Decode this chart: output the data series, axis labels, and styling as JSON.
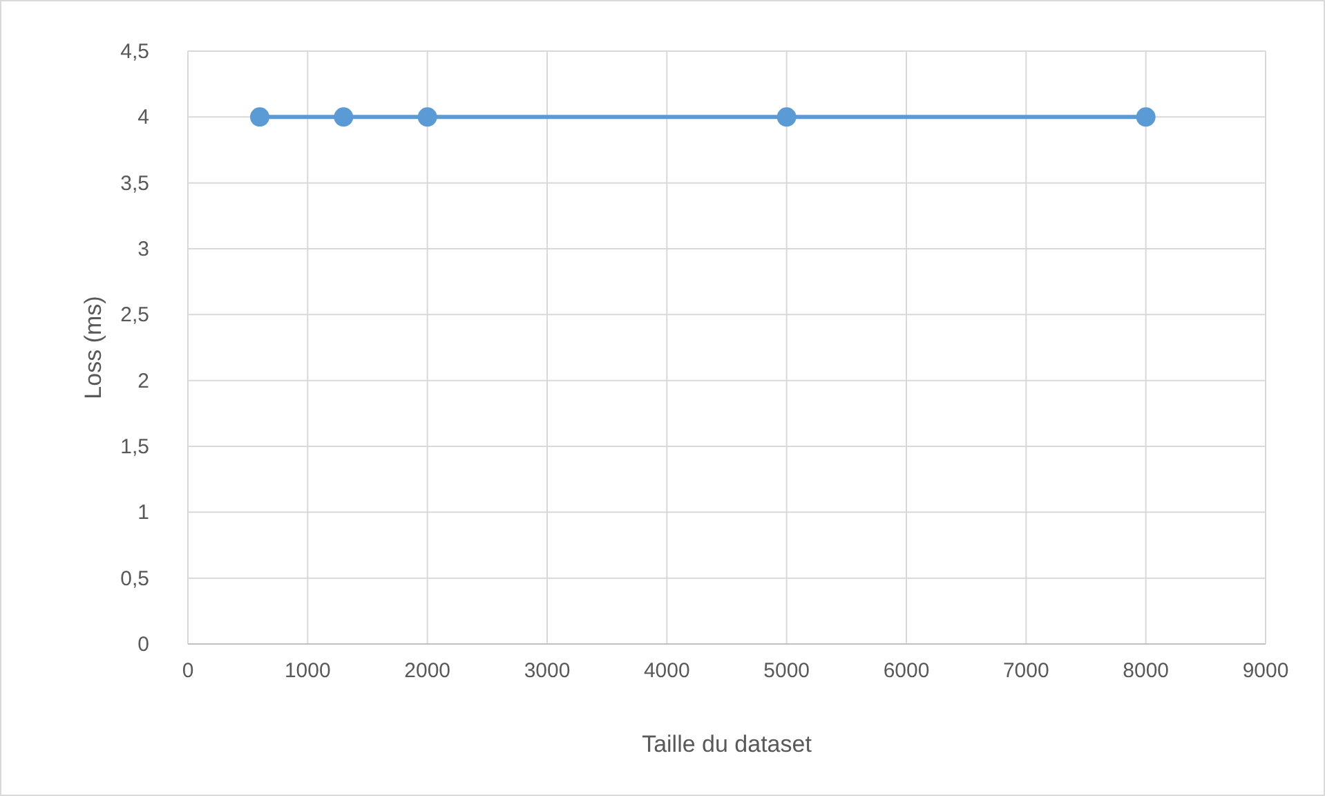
{
  "chart_data": {
    "type": "line",
    "xlabel": "Taille du dataset",
    "ylabel": "Loss (ms)",
    "x": [
      600,
      1300,
      2000,
      5000,
      8000
    ],
    "series": [
      {
        "color": "#5b9bd5",
        "values": [
          4,
          4,
          4,
          4,
          4
        ]
      }
    ],
    "xlim": [
      0,
      9000
    ],
    "xticks": [
      0,
      1000,
      2000,
      3000,
      4000,
      5000,
      6000,
      7000,
      8000,
      9000
    ],
    "ylim": [
      0,
      4.5
    ],
    "yticks": [
      0,
      {
        "value": 0.5,
        "label": "0,5"
      },
      1,
      {
        "value": 1.5,
        "label": "1,5"
      },
      2,
      {
        "value": 2.5,
        "label": "2,5"
      },
      3,
      {
        "value": 3.5,
        "label": "3,5"
      },
      4,
      {
        "value": 4.5,
        "label": "4,5"
      }
    ],
    "grid": true,
    "marker": "circle",
    "line_style": "solid"
  }
}
